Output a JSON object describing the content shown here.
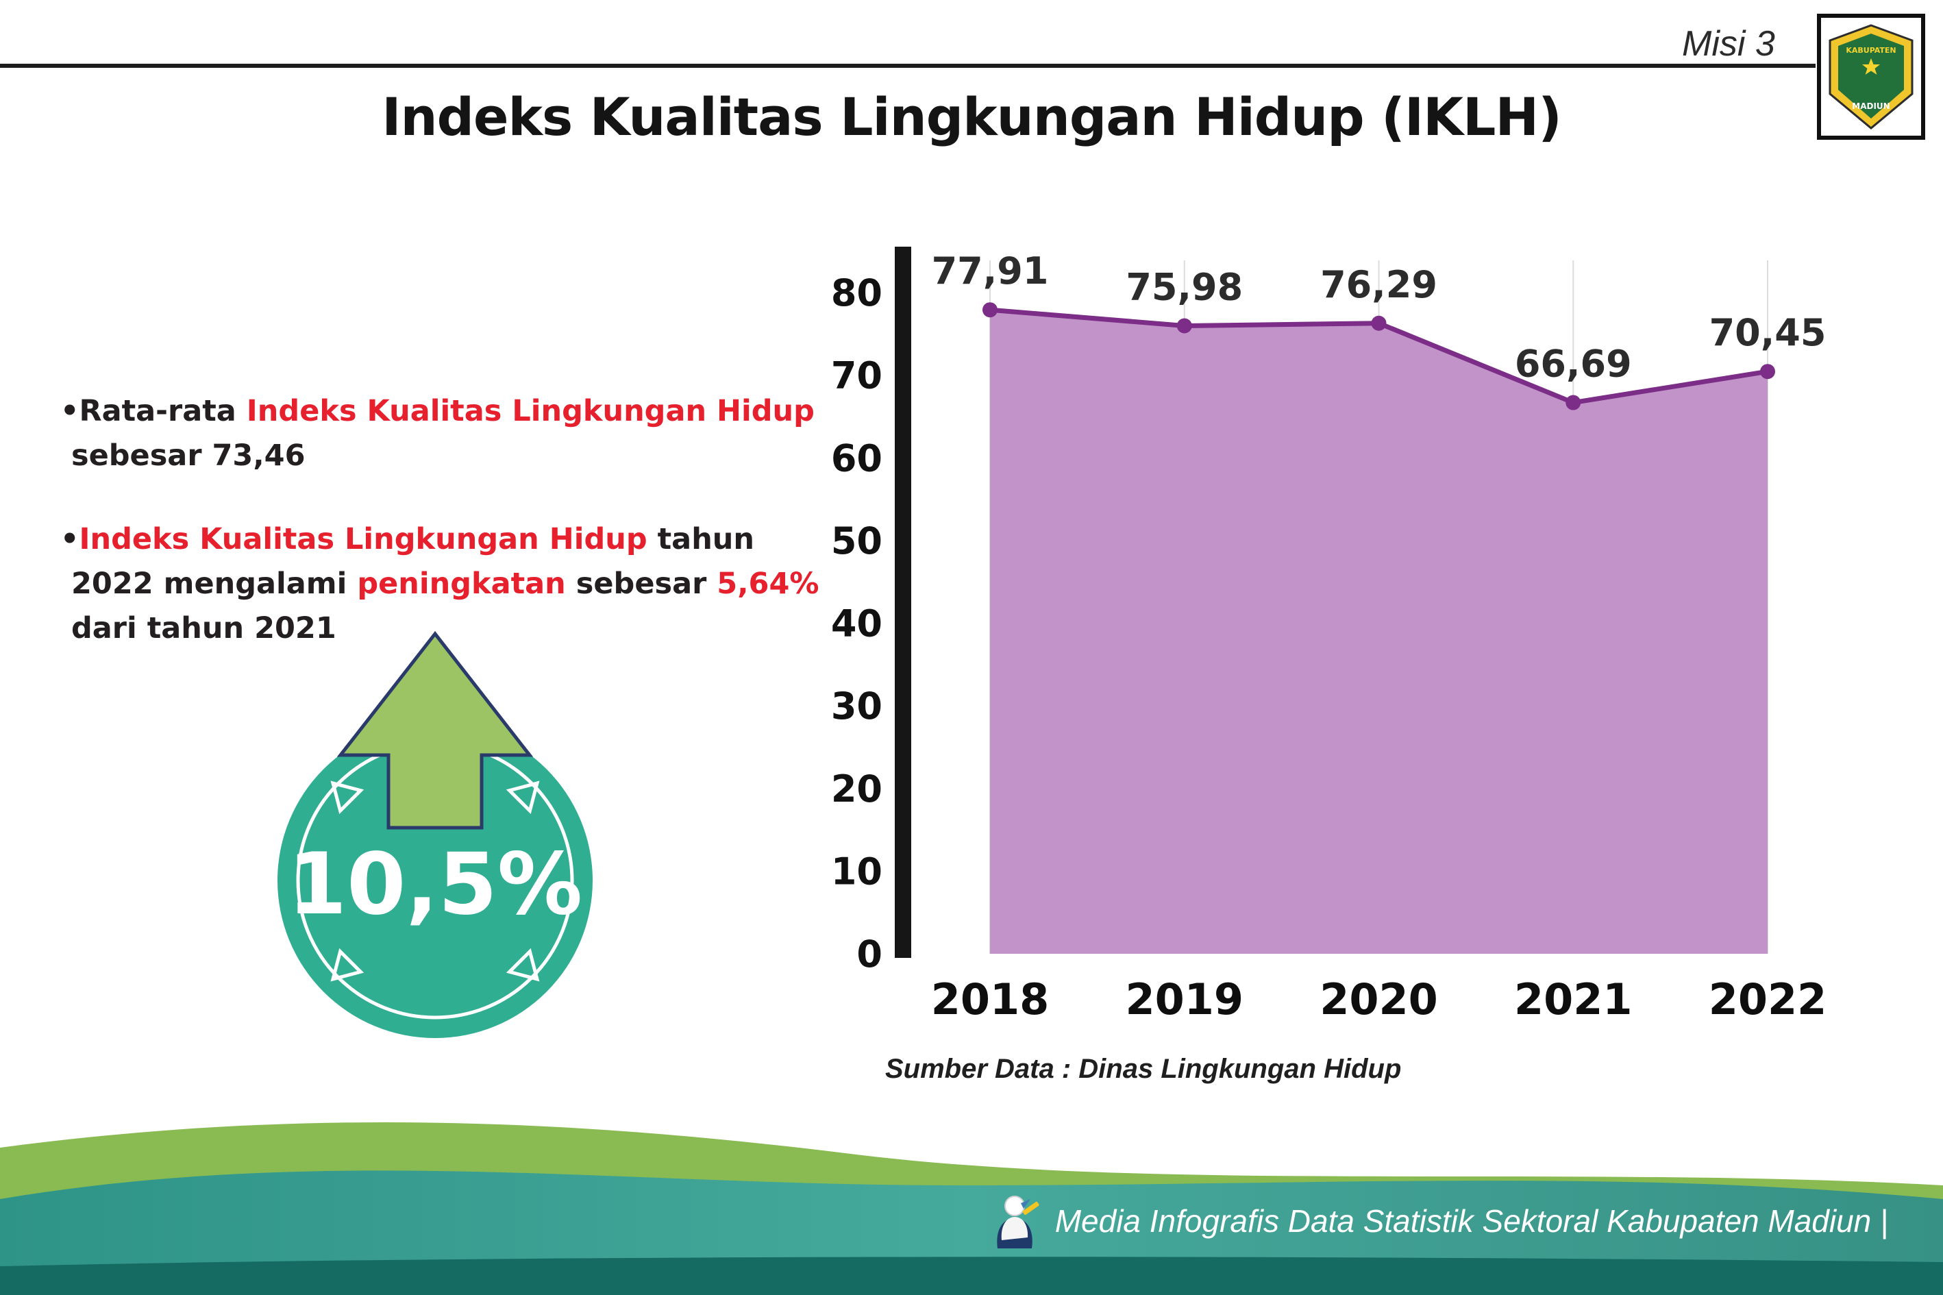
{
  "header": {
    "misi": "Misi 3",
    "title": "Indeks Kualitas Lingkungan Hidup (IKLH)",
    "logo": {
      "top": "KABUPATEN",
      "bottom": "MADIUN"
    }
  },
  "bullets": {
    "glyph": "•",
    "item1": {
      "p1": "Rata-rata ",
      "p2_red": "Indeks Kualitas Lingkungan Hidup",
      "p3": " sebesar 73,46"
    },
    "item2": {
      "p1_red": "Indeks Kualitas Lingkungan Hidup",
      "p2": " tahun 2022 mengalami ",
      "p3_red": "peningkatan",
      "p4": " sebesar ",
      "p5_red": "5,64%",
      "p6": " dari tahun 2021"
    }
  },
  "badge": {
    "value": "10,5%"
  },
  "chart_data": {
    "type": "area",
    "title": "Indeks Kualitas Lingkungan Hidup (IKLH)",
    "categories": [
      "2018",
      "2019",
      "2020",
      "2021",
      "2022"
    ],
    "values": [
      77.91,
      75.98,
      76.29,
      66.69,
      70.45
    ],
    "value_labels": [
      "77,91",
      "75,98",
      "76,29",
      "66,69",
      "70,45"
    ],
    "ylim": [
      0,
      80
    ],
    "yticks": [
      0,
      10,
      20,
      30,
      40,
      50,
      60,
      70,
      80
    ],
    "grid": "vertical-light",
    "legend": "none",
    "area_color": "#c293c8",
    "line_color": "#7b2d88",
    "point_color": "#7b2d88",
    "source_note": "Sumber Data : Dinas Lingkungan Hidup"
  },
  "footer": {
    "text": "Media Infografis Data Statistik Sektoral Kabupaten Madiun |"
  },
  "colors": {
    "accent_red": "#e6202d",
    "badge_teal": "#2fae92",
    "arrow_green": "#9cc464",
    "footer_teal": "#3a9a8d",
    "footer_green": "#8abb52",
    "footer_dark": "#156b62",
    "text_dark": "#231f20"
  }
}
